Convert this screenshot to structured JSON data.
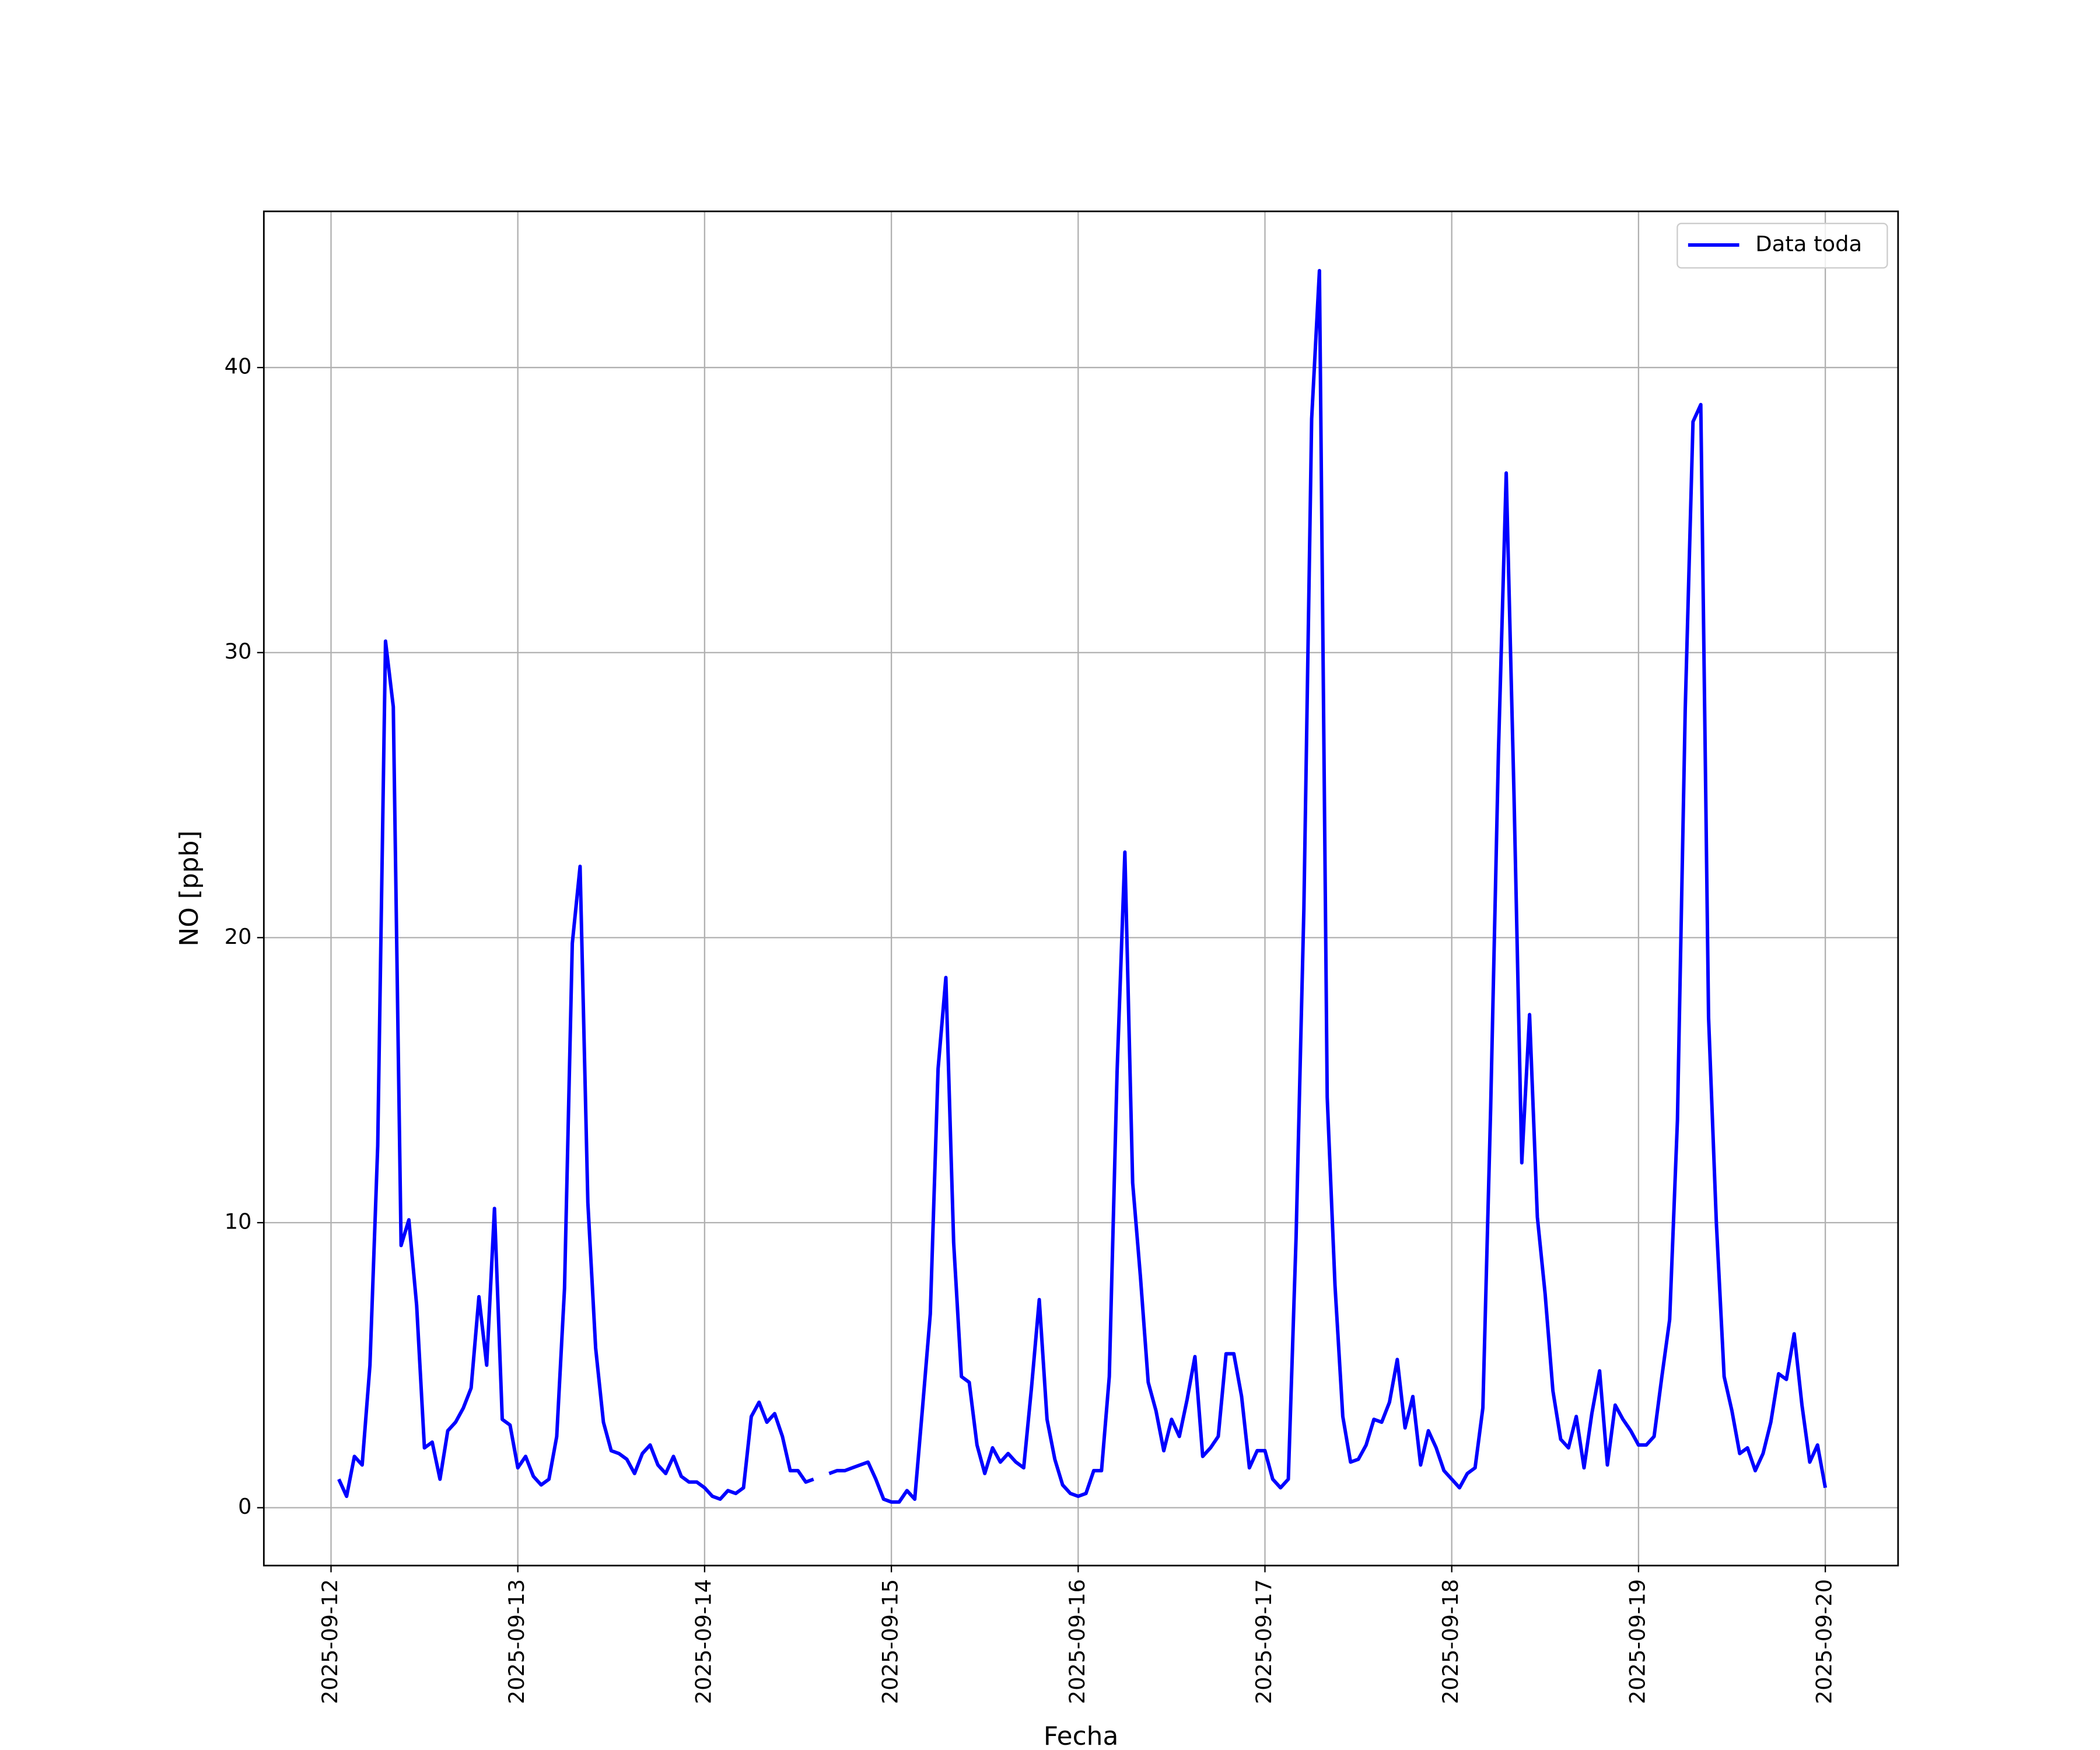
{
  "chart_data": {
    "type": "line",
    "xlabel": "Fecha",
    "ylabel": "NO [ppb]",
    "x": [
      "2025-09-12 01:00",
      "2025-09-12 02:00",
      "2025-09-12 03:00",
      "2025-09-12 04:00",
      "2025-09-12 05:00",
      "2025-09-12 06:00",
      "2025-09-12 07:00",
      "2025-09-12 08:00",
      "2025-09-12 09:00",
      "2025-09-12 10:00",
      "2025-09-12 11:00",
      "2025-09-12 12:00",
      "2025-09-12 13:00",
      "2025-09-12 14:00",
      "2025-09-12 15:00",
      "2025-09-12 16:00",
      "2025-09-12 17:00",
      "2025-09-12 18:00",
      "2025-09-12 19:00",
      "2025-09-12 20:00",
      "2025-09-12 21:00",
      "2025-09-12 22:00",
      "2025-09-12 23:00",
      "2025-09-13 00:00",
      "2025-09-13 01:00",
      "2025-09-13 02:00",
      "2025-09-13 03:00",
      "2025-09-13 04:00",
      "2025-09-13 05:00",
      "2025-09-13 06:00",
      "2025-09-13 07:00",
      "2025-09-13 08:00",
      "2025-09-13 09:00",
      "2025-09-13 10:00",
      "2025-09-13 11:00",
      "2025-09-13 12:00",
      "2025-09-13 13:00",
      "2025-09-13 14:00",
      "2025-09-13 15:00",
      "2025-09-13 16:00",
      "2025-09-13 17:00",
      "2025-09-13 18:00",
      "2025-09-13 19:00",
      "2025-09-13 20:00",
      "2025-09-13 21:00",
      "2025-09-13 22:00",
      "2025-09-13 23:00",
      "2025-09-14 00:00",
      "2025-09-14 01:00",
      "2025-09-14 02:00",
      "2025-09-14 03:00",
      "2025-09-14 04:00",
      "2025-09-14 05:00",
      "2025-09-14 06:00",
      "2025-09-14 07:00",
      "2025-09-14 08:00",
      "2025-09-14 09:00",
      "2025-09-14 10:00",
      "2025-09-14 11:00",
      "2025-09-14 12:00",
      "2025-09-14 13:00",
      "2025-09-14 14:00",
      "2025-09-14 15:00",
      "2025-09-14 16:00",
      "2025-09-14 17:00",
      "2025-09-14 18:00",
      "2025-09-14 19:00",
      "2025-09-14 20:00",
      "2025-09-14 21:00",
      "2025-09-14 22:00",
      "2025-09-14 23:00",
      "2025-09-15 00:00",
      "2025-09-15 01:00",
      "2025-09-15 02:00",
      "2025-09-15 03:00",
      "2025-09-15 04:00",
      "2025-09-15 05:00",
      "2025-09-15 06:00",
      "2025-09-15 07:00",
      "2025-09-15 08:00",
      "2025-09-15 09:00",
      "2025-09-15 10:00",
      "2025-09-15 11:00",
      "2025-09-15 12:00",
      "2025-09-15 13:00",
      "2025-09-15 14:00",
      "2025-09-15 15:00",
      "2025-09-15 16:00",
      "2025-09-15 17:00",
      "2025-09-15 18:00",
      "2025-09-15 19:00",
      "2025-09-15 20:00",
      "2025-09-15 21:00",
      "2025-09-15 22:00",
      "2025-09-15 23:00",
      "2025-09-16 00:00",
      "2025-09-16 01:00",
      "2025-09-16 02:00",
      "2025-09-16 03:00",
      "2025-09-16 04:00",
      "2025-09-16 05:00",
      "2025-09-16 06:00",
      "2025-09-16 07:00",
      "2025-09-16 08:00",
      "2025-09-16 09:00",
      "2025-09-16 10:00",
      "2025-09-16 11:00",
      "2025-09-16 12:00",
      "2025-09-16 13:00",
      "2025-09-16 14:00",
      "2025-09-16 15:00",
      "2025-09-16 16:00",
      "2025-09-16 17:00",
      "2025-09-16 18:00",
      "2025-09-16 19:00",
      "2025-09-16 20:00",
      "2025-09-16 21:00",
      "2025-09-16 22:00",
      "2025-09-16 23:00",
      "2025-09-17 00:00",
      "2025-09-17 01:00",
      "2025-09-17 02:00",
      "2025-09-17 03:00",
      "2025-09-17 04:00",
      "2025-09-17 05:00",
      "2025-09-17 06:00",
      "2025-09-17 07:00",
      "2025-09-17 08:00",
      "2025-09-17 09:00",
      "2025-09-17 10:00",
      "2025-09-17 11:00",
      "2025-09-17 12:00",
      "2025-09-17 13:00",
      "2025-09-17 14:00",
      "2025-09-17 15:00",
      "2025-09-17 16:00",
      "2025-09-17 17:00",
      "2025-09-17 18:00",
      "2025-09-17 19:00",
      "2025-09-17 20:00",
      "2025-09-17 21:00",
      "2025-09-17 22:00",
      "2025-09-17 23:00",
      "2025-09-18 00:00",
      "2025-09-18 01:00",
      "2025-09-18 02:00",
      "2025-09-18 03:00",
      "2025-09-18 04:00",
      "2025-09-18 05:00",
      "2025-09-18 06:00",
      "2025-09-18 07:00",
      "2025-09-18 08:00",
      "2025-09-18 09:00",
      "2025-09-18 10:00",
      "2025-09-18 11:00",
      "2025-09-18 12:00",
      "2025-09-18 13:00",
      "2025-09-18 14:00",
      "2025-09-18 15:00",
      "2025-09-18 16:00",
      "2025-09-18 17:00",
      "2025-09-18 18:00",
      "2025-09-18 19:00",
      "2025-09-18 20:00",
      "2025-09-18 21:00",
      "2025-09-18 22:00",
      "2025-09-18 23:00",
      "2025-09-19 00:00",
      "2025-09-19 01:00",
      "2025-09-19 02:00",
      "2025-09-19 03:00",
      "2025-09-19 04:00",
      "2025-09-19 05:00",
      "2025-09-19 06:00",
      "2025-09-19 07:00",
      "2025-09-19 08:00",
      "2025-09-19 09:00",
      "2025-09-19 10:00",
      "2025-09-19 11:00",
      "2025-09-19 12:00",
      "2025-09-19 13:00",
      "2025-09-19 14:00",
      "2025-09-19 15:00",
      "2025-09-19 16:00",
      "2025-09-19 17:00",
      "2025-09-19 18:00",
      "2025-09-19 19:00",
      "2025-09-19 20:00",
      "2025-09-19 21:00",
      "2025-09-19 22:00",
      "2025-09-19 23:00",
      "2025-09-20 00:00"
    ],
    "series": [
      {
        "name": "Data toda",
        "color": "#0000ff",
        "values": [
          1.0,
          0.4,
          1.8,
          1.5,
          5.0,
          12.7,
          30.4,
          28.1,
          9.2,
          10.1,
          7.1,
          2.1,
          2.3,
          1.0,
          2.7,
          3.0,
          3.5,
          4.2,
          7.4,
          5.0,
          10.5,
          3.1,
          2.9,
          1.4,
          1.8,
          1.1,
          0.8,
          1.0,
          2.5,
          7.7,
          19.8,
          22.5,
          10.7,
          5.6,
          3.0,
          2.0,
          1.9,
          1.7,
          1.2,
          1.9,
          2.2,
          1.5,
          1.2,
          1.8,
          1.1,
          0.9,
          0.9,
          0.7,
          0.4,
          0.3,
          0.6,
          0.5,
          0.7,
          3.2,
          3.7,
          3.0,
          3.3,
          2.5,
          1.3,
          1.3,
          0.9,
          1.0,
          null,
          1.2,
          1.3,
          1.3,
          1.4,
          1.5,
          1.6,
          1.0,
          0.3,
          0.2,
          0.2,
          0.6,
          0.3,
          3.5,
          6.8,
          15.4,
          18.6,
          9.3,
          4.6,
          4.4,
          2.2,
          1.2,
          2.1,
          1.6,
          1.9,
          1.6,
          1.4,
          4.2,
          7.3,
          3.1,
          1.7,
          0.8,
          0.5,
          0.4,
          0.5,
          1.3,
          1.3,
          4.6,
          15.3,
          23.0,
          11.4,
          8.1,
          4.4,
          3.4,
          2.0,
          3.1,
          2.5,
          3.8,
          5.3,
          1.8,
          2.1,
          2.5,
          5.4,
          5.4,
          3.9,
          1.4,
          2.0,
          2.0,
          1.0,
          0.7,
          1.0,
          9.5,
          21.0,
          38.2,
          43.4,
          14.4,
          7.8,
          3.2,
          1.6,
          1.7,
          2.2,
          3.1,
          3.0,
          3.7,
          5.2,
          2.8,
          3.9,
          1.5,
          2.7,
          2.1,
          1.3,
          1.0,
          0.7,
          1.2,
          1.4,
          3.5,
          14.0,
          26.5,
          36.3,
          25.0,
          12.1,
          17.3,
          10.2,
          7.5,
          4.1,
          2.4,
          2.1,
          3.2,
          1.4,
          3.3,
          4.8,
          1.5,
          3.6,
          3.1,
          2.7,
          2.2,
          2.2,
          2.5,
          4.6,
          6.6,
          13.6,
          28.0,
          38.1,
          38.7,
          17.2,
          10.0,
          4.6,
          3.4,
          1.9,
          2.1,
          1.3,
          1.9,
          3.0,
          4.7,
          4.5,
          6.1,
          3.6,
          1.6,
          2.2,
          0.7
        ]
      }
    ],
    "xlim": [
      "2025-09-11 15:22",
      "2025-09-20 09:21"
    ],
    "xticks": [
      "2025-09-12",
      "2025-09-13",
      "2025-09-14",
      "2025-09-15",
      "2025-09-16",
      "2025-09-17",
      "2025-09-18",
      "2025-09-19",
      "2025-09-20"
    ],
    "ylim": [
      -2.03,
      45.48
    ],
    "yticks": [
      0,
      10,
      20,
      30,
      40
    ],
    "grid": true,
    "legend": "upper right"
  }
}
